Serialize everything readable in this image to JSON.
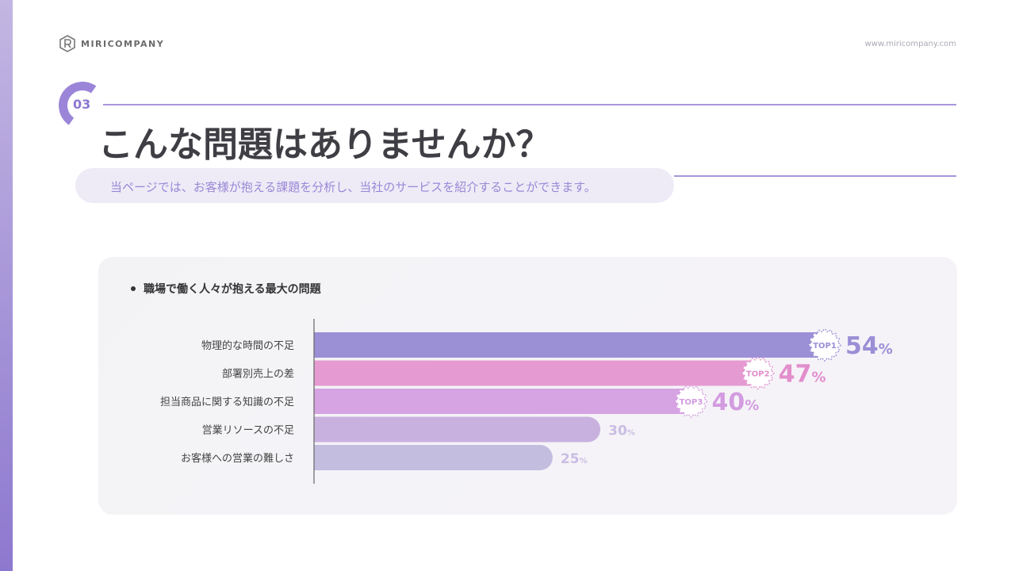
{
  "header": {
    "brand_name": "MIRICOMPANY",
    "site_url": "www.miricompany.com"
  },
  "section": {
    "number": "03",
    "title": "こんな問題はありませんか？",
    "subtitle": "当ページでは、お客様が抱える課題を分析し、当社のサービスを紹介することができます。"
  },
  "icons": {
    "brand_logo": "r-logo-icon",
    "bullet": "bullet-icon",
    "badge": "scalloped-badge-icon"
  },
  "colors": {
    "accent": "#9a85d8",
    "bar_1": "#9b8fd6",
    "bar_2": "#e59bd1",
    "bar_3": "#d6a4e2",
    "bar_4": "#c9b1df",
    "bar_5": "#c3bde0",
    "value_1": "#9b8fd6",
    "value_2": "#e28ecd",
    "value_3": "#d39ce0",
    "value_4": "#c9bde4",
    "value_5": "#c9bde4"
  },
  "chart_data": {
    "type": "bar",
    "orientation": "horizontal",
    "title": "職場で働く人々が抱える最大の問題",
    "categories": [
      "物理的な時間の不足",
      "部署別売上の差",
      "担当商品に関する知識の不足",
      "営業リソースの不足",
      "お客様への営業の難しさ"
    ],
    "values": [
      54,
      47,
      40,
      30,
      25
    ],
    "unit": "%",
    "badges": [
      "TOP1",
      "TOP2",
      "TOP3",
      "",
      ""
    ],
    "xlim": [
      0,
      65
    ],
    "grid": false,
    "legend": "none"
  }
}
